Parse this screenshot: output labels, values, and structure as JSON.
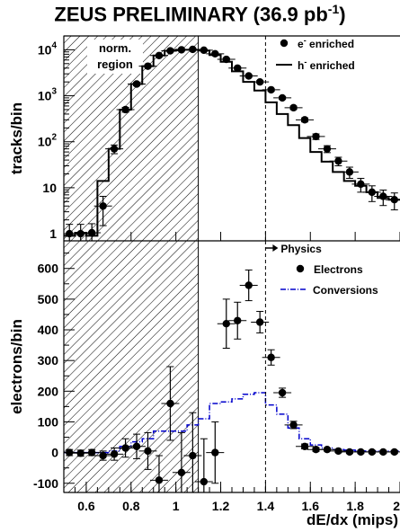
{
  "figure_title": {
    "prefix": "ZEUS PRELIMINARY (36.9 pb",
    "superscript": "-1",
    "suffix": ")"
  },
  "chart_data": [
    {
      "type": "line",
      "panel": "top",
      "ylabel": "tracks/bin",
      "yscale": "log",
      "ylim": [
        0.7,
        20000
      ],
      "xlim": [
        0.5,
        2.0
      ],
      "yticks": [
        {
          "v": 1,
          "label": "1"
        },
        {
          "v": 10,
          "label": "10"
        },
        {
          "v": 100,
          "base": "10",
          "exp": "2"
        },
        {
          "v": 1000,
          "base": "10",
          "exp": "3"
        },
        {
          "v": 10000,
          "base": "10",
          "exp": "4"
        }
      ],
      "annotation": [
        "norm.",
        "region"
      ],
      "norm_region": [
        0.5,
        1.1
      ],
      "cut_line_x": 1.4,
      "series": [
        {
          "name": "e⁻ enriched",
          "label_parts": [
            "e",
            "-",
            " enriched"
          ],
          "style": "markers",
          "x": [
            0.525,
            0.575,
            0.625,
            0.675,
            0.725,
            0.775,
            0.825,
            0.875,
            0.925,
            0.975,
            1.025,
            1.075,
            1.125,
            1.175,
            1.225,
            1.275,
            1.325,
            1.375,
            1.425,
            1.475,
            1.525,
            1.575,
            1.625,
            1.675,
            1.725,
            1.775,
            1.825,
            1.875,
            1.925,
            1.975
          ],
          "y": [
            1.0,
            1.0,
            1.05,
            4.0,
            70,
            500,
            1800,
            4400,
            7500,
            9500,
            10000,
            10200,
            9800,
            8200,
            6200,
            4000,
            2700,
            2000,
            1350,
            900,
            550,
            300,
            130,
            70,
            38,
            22,
            12,
            8,
            6.5,
            5.5
          ],
          "err_lo": [
            0.6,
            0.6,
            0.6,
            2.5,
            15,
            60,
            150,
            300,
            450,
            500,
            500,
            500,
            500,
            450,
            350,
            250,
            180,
            130,
            90,
            60,
            45,
            30,
            18,
            12,
            8,
            6,
            4,
            3,
            2.4,
            2.2
          ],
          "err_hi": [
            0.6,
            0.6,
            0.6,
            2.5,
            15,
            60,
            150,
            300,
            450,
            500,
            500,
            500,
            500,
            450,
            350,
            250,
            180,
            130,
            90,
            60,
            45,
            30,
            18,
            12,
            8,
            6,
            4,
            3,
            2.4,
            2.2
          ]
        },
        {
          "name": "h⁻ enriched",
          "label_parts": [
            "h",
            "-",
            " enriched"
          ],
          "style": "histogram",
          "edges": [
            0.5,
            0.55,
            0.6,
            0.65,
            0.7,
            0.75,
            0.8,
            0.85,
            0.9,
            0.95,
            1.0,
            1.05,
            1.1,
            1.15,
            1.2,
            1.25,
            1.3,
            1.35,
            1.4,
            1.45,
            1.5,
            1.55,
            1.6,
            1.65,
            1.7,
            1.75,
            1.8,
            1.85,
            1.9,
            1.95,
            2.0
          ],
          "values": [
            0.9,
            1.05,
            0.9,
            14,
            70,
            500,
            1800,
            4400,
            7500,
            9500,
            10000,
            10000,
            9600,
            7700,
            5500,
            3400,
            2000,
            1300,
            720,
            400,
            230,
            120,
            60,
            37,
            22,
            14,
            11,
            8,
            6,
            5.5
          ]
        }
      ]
    },
    {
      "type": "line",
      "panel": "bottom",
      "ylabel": "electrons/bin",
      "xlabel": "dE/dx (mips)",
      "ylim": [
        -130,
        690
      ],
      "xlim": [
        0.5,
        2.0
      ],
      "yticks": [
        -100,
        0,
        100,
        200,
        300,
        400,
        500,
        600
      ],
      "xticks": [
        0.6,
        0.8,
        1.0,
        1.2,
        1.4,
        1.6,
        1.8,
        2.0
      ],
      "xtick_labels": [
        "0.6",
        "0.8",
        "1",
        "1.2",
        "1.4",
        "1.6",
        "1.8",
        "2"
      ],
      "norm_region": [
        0.5,
        1.1
      ],
      "cut_line_x": 1.4,
      "arrow_label": "Physics",
      "series": [
        {
          "name": "Electrons",
          "style": "markers",
          "x": [
            0.525,
            0.575,
            0.625,
            0.675,
            0.725,
            0.775,
            0.825,
            0.875,
            0.925,
            0.975,
            1.025,
            1.075,
            1.125,
            1.175,
            1.225,
            1.275,
            1.325,
            1.375,
            1.425,
            1.475,
            1.525,
            1.575,
            1.625,
            1.675,
            1.725,
            1.775,
            1.825,
            1.875,
            1.925,
            1.975
          ],
          "y": [
            0,
            -2,
            0,
            -10,
            -5,
            15,
            20,
            5,
            -90,
            160,
            -65,
            -10,
            -95,
            0,
            420,
            430,
            545,
            425,
            310,
            195,
            90,
            20,
            10,
            10,
            5,
            2,
            2,
            2,
            2,
            2
          ],
          "err": [
            10,
            10,
            10,
            15,
            20,
            30,
            40,
            60,
            80,
            120,
            130,
            140,
            140,
            100,
            80,
            60,
            50,
            35,
            25,
            15,
            12,
            8,
            6,
            5,
            5,
            5,
            5,
            5,
            5,
            5
          ]
        },
        {
          "name": "Conversions",
          "style": "dashdot-histogram",
          "color": "#0000cc",
          "edges": [
            0.5,
            0.55,
            0.6,
            0.65,
            0.7,
            0.75,
            0.8,
            0.85,
            0.9,
            0.95,
            1.0,
            1.05,
            1.1,
            1.15,
            1.2,
            1.25,
            1.3,
            1.35,
            1.4,
            1.45,
            1.5,
            1.55,
            1.6,
            1.65,
            1.7,
            1.75,
            1.8,
            1.85,
            1.9,
            1.95,
            2.0
          ],
          "values": [
            0,
            0,
            0,
            0,
            5,
            20,
            35,
            45,
            70,
            70,
            70,
            90,
            110,
            160,
            165,
            175,
            190,
            195,
            155,
            125,
            80,
            45,
            25,
            15,
            10,
            8,
            5,
            5,
            5,
            5
          ]
        }
      ]
    }
  ]
}
